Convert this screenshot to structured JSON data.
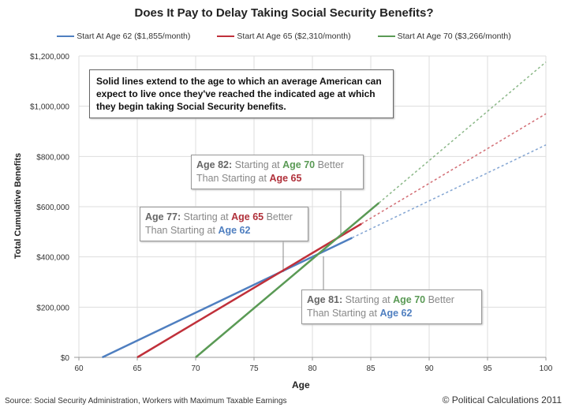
{
  "chart_data": {
    "type": "line",
    "title": "Does It Pay to Delay Taking Social Security Benefits?",
    "xlabel": "Age",
    "ylabel": "Total Cumulative Benefits",
    "xlim": [
      60,
      100
    ],
    "ylim": [
      0,
      1200000
    ],
    "x_ticks": [
      "60",
      "65",
      "70",
      "75",
      "80",
      "85",
      "90",
      "95",
      "100"
    ],
    "y_ticks": [
      "$0",
      "$200,000",
      "$400,000",
      "$600,000",
      "$800,000",
      "$1,000,000",
      "$1,200,000"
    ],
    "grid": true,
    "legend_position": "top",
    "series": [
      {
        "name": "Start At Age 62 ($1,855/month)",
        "color": "#4f7fc0",
        "solid": [
          [
            62,
            0
          ],
          [
            83.4,
            476000
          ]
        ],
        "dashed": [
          [
            83.4,
            476000
          ],
          [
            100,
            846000
          ]
        ]
      },
      {
        "name": "Start At Age 65 ($2,310/month)",
        "color": "#c0303a",
        "solid": [
          [
            65,
            0
          ],
          [
            84.2,
            532000
          ]
        ],
        "dashed": [
          [
            84.2,
            532000
          ],
          [
            100,
            970000
          ]
        ]
      },
      {
        "name": "Start At Age 70 ($3,266/month)",
        "color": "#5a9a55",
        "solid": [
          [
            70,
            0
          ],
          [
            85.7,
            615000
          ]
        ],
        "dashed": [
          [
            85.7,
            615000
          ],
          [
            100,
            1176000
          ]
        ]
      }
    ],
    "annotations": {
      "note": "Solid lines extend to the age to which an average American can expect to live once they've reached the indicated age at which they begin taking Social Security benefits.",
      "a82": {
        "age": "Age 82:",
        "t1": "Starting at",
        "s1": "Age 70",
        "t2": "Better",
        "t3": "Than Starting at",
        "s2": "Age 65"
      },
      "a77": {
        "age": "Age 77:",
        "t1": "Starting at",
        "s1": "Age 65",
        "t2": "Better",
        "t3": "Than Starting at",
        "s2": "Age 62"
      },
      "a81": {
        "age": "Age 81:",
        "t1": "Starting at",
        "s1": "Age 70",
        "t2": "Better",
        "t3": "Than Starting at",
        "s2": "Age 62"
      }
    },
    "source": "Source: Social Security Administration, Workers with Maximum Taxable Earnings",
    "copyright": "© Political Calculations 2011"
  }
}
